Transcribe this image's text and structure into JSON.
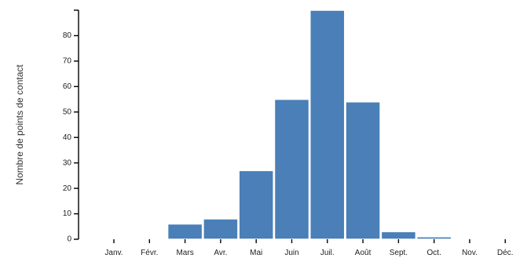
{
  "chart_data": {
    "type": "bar",
    "title": "",
    "xlabel": "",
    "ylabel": "Nombre de points de contact",
    "categories": [
      "Janv.",
      "Févr.",
      "Mars",
      "Avr.",
      "Mai",
      "Juin",
      "Juil.",
      "Août",
      "Sept.",
      "Oct.",
      "Nov.",
      "Déc."
    ],
    "values": [
      0,
      0,
      6,
      8,
      27,
      55,
      90,
      54,
      3,
      1,
      0,
      0
    ],
    "ylim": [
      0,
      90
    ],
    "yticks": [
      0,
      10,
      20,
      30,
      40,
      50,
      60,
      70,
      80
    ],
    "grid": false,
    "colors": {
      "bar": "#4a7fb8"
    }
  }
}
